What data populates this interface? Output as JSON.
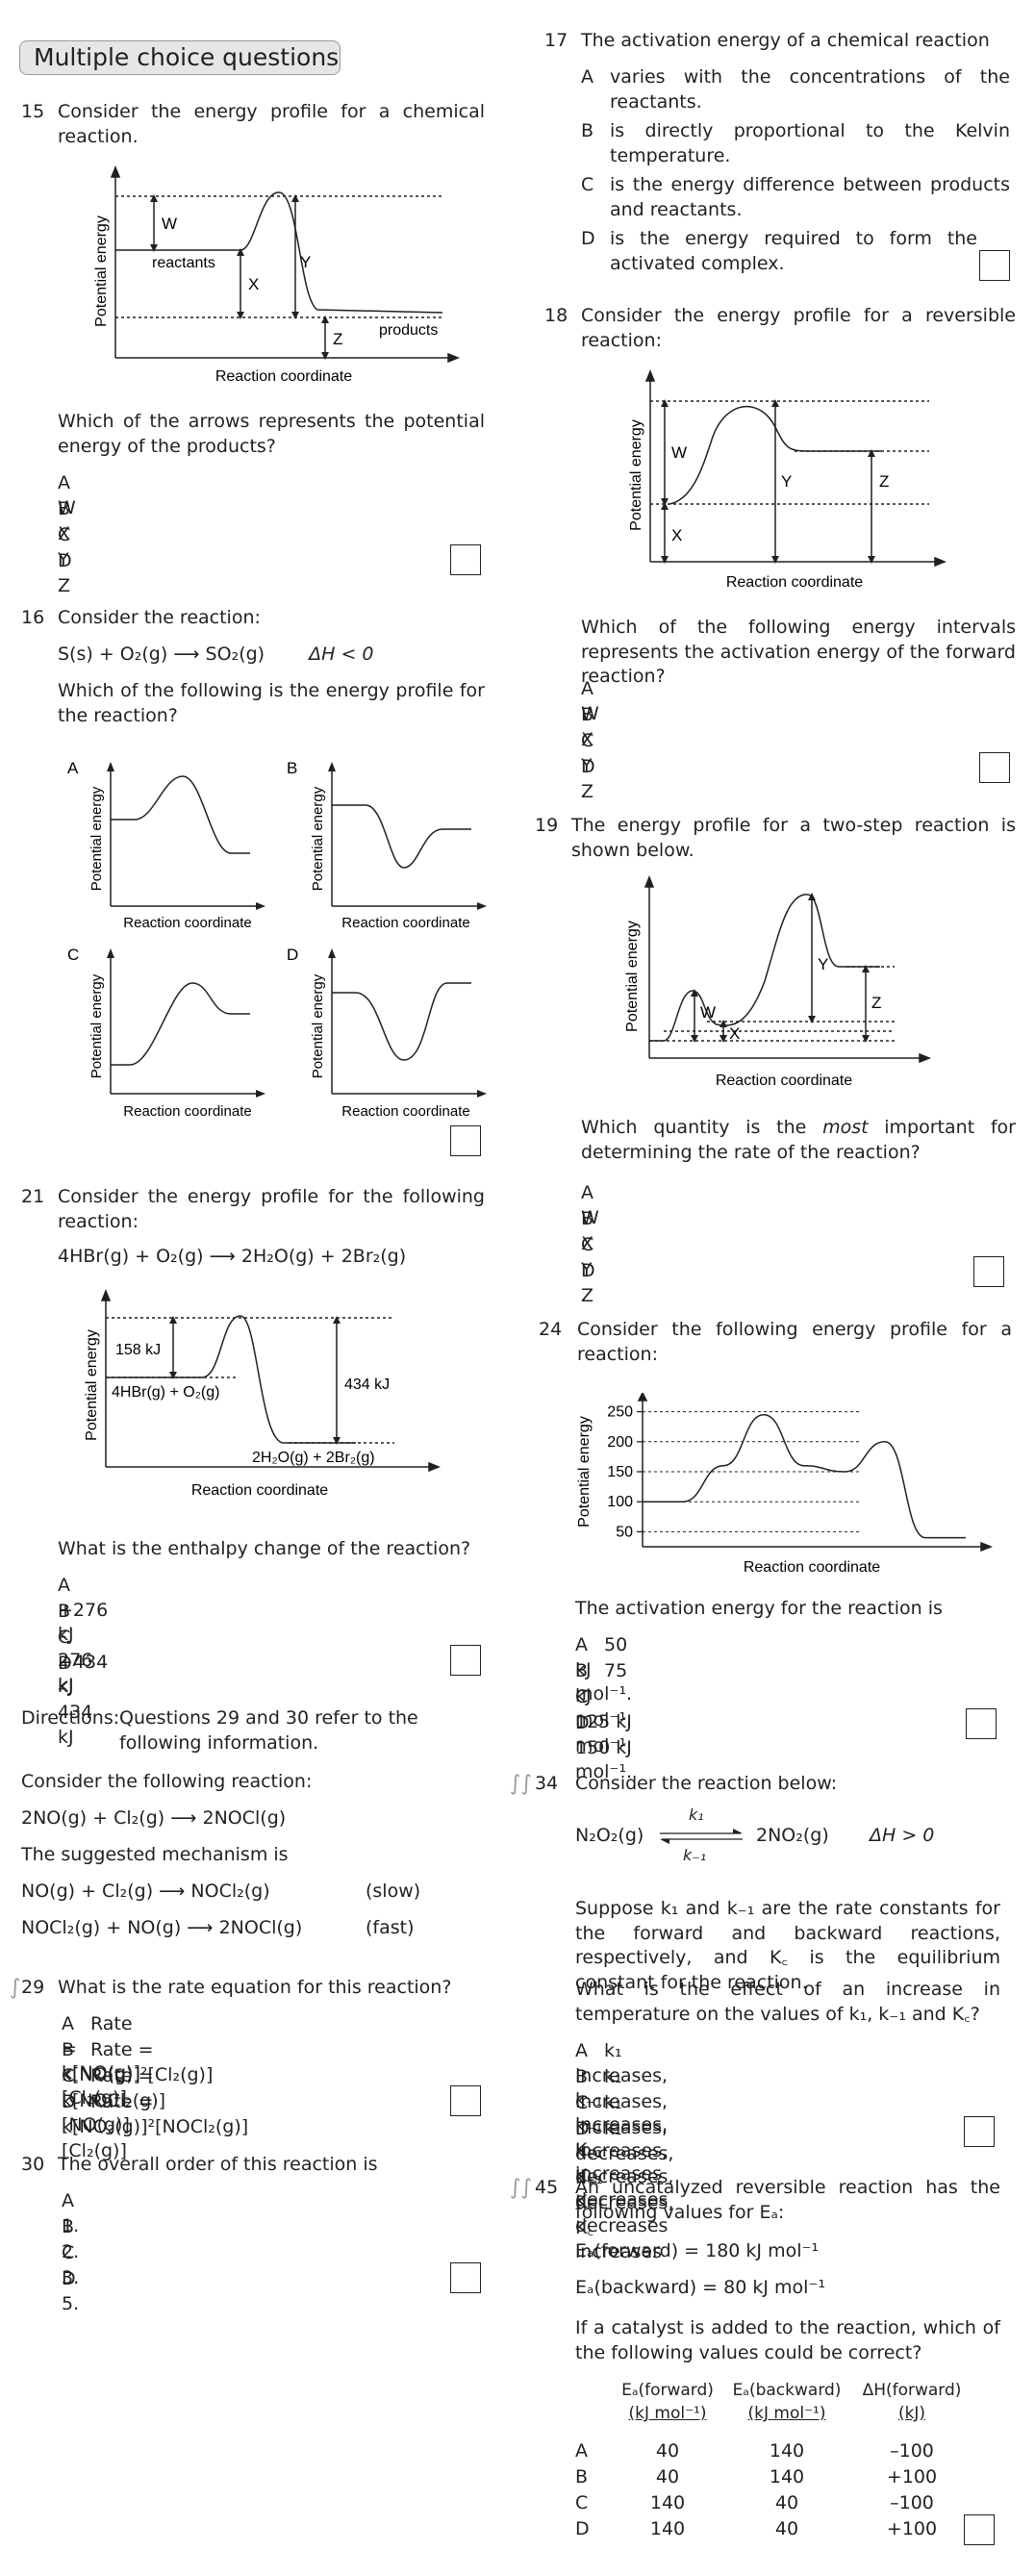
{
  "header": {
    "title": "Multiple choice questions"
  },
  "q15": {
    "num": "15",
    "text": "Consider the energy profile for a chemical reaction.",
    "fig": {
      "ylabel": "Potential energy",
      "xlabel": "Reaction coordinate",
      "reactants": "reactants",
      "products": "products",
      "W": "W",
      "X": "X",
      "Y": "Y",
      "Z": "Z"
    },
    "question": "Which of the arrows represents the potential energy of the products?",
    "options": [
      [
        "A",
        "W"
      ],
      [
        "B",
        "X"
      ],
      [
        "C",
        "Y"
      ],
      [
        "D",
        "Z"
      ]
    ]
  },
  "q16": {
    "num": "16",
    "text": "Consider the reaction:",
    "equation": "S(s) + O₂(g) ⟶ SO₂(g)",
    "dh": "ΔH < 0",
    "question": "Which of the following is the energy profile for the reaction?",
    "labels": [
      "A",
      "B",
      "C",
      "D"
    ],
    "ylabel": "Potential energy",
    "xlabel": "Reaction coordinate"
  },
  "q21": {
    "num": "21",
    "text": "Consider the energy profile for the following reaction:",
    "equation": "4HBr(g) + O₂(g) ⟶ 2H₂O(g) + 2Br₂(g)",
    "fig": {
      "ylabel": "Potential energy",
      "xlabel": "Reaction coordinate",
      "e1": "158 kJ",
      "e2": "434 kJ",
      "react": "4HBr(g) + O₂(g)",
      "prod": "2H₂O(g) + 2Br₂(g)"
    },
    "question": "What is the enthalpy change of the reaction?",
    "options": [
      [
        "A",
        "+276 kJ"
      ],
      [
        "B",
        "–276 kJ"
      ],
      [
        "C",
        "+434 kJ"
      ],
      [
        "D",
        "–434 kJ"
      ]
    ]
  },
  "directions": {
    "label": "Directions:",
    "text": "Questions 29 and 30 refer to the following information.",
    "consider": "Consider the following reaction:",
    "equation": "2NO(g) + Cl₂(g) ⟶ 2NOCl(g)",
    "mechanism": "The suggested mechanism is",
    "step1": "NO(g) + Cl₂(g) ⟶ NOCl₂(g)",
    "step1_rate": "(slow)",
    "step2": "NOCl₂(g) + NO(g) ⟶ 2NOCl(g)",
    "step2_rate": "(fast)"
  },
  "q29": {
    "num": "29",
    "text": "What is the rate equation for this reaction?",
    "options": [
      [
        "A",
        "Rate = k[NO(g)][Cl₂(g)]"
      ],
      [
        "B",
        "Rate = k[NO(g)]²[Cl₂(g)]"
      ],
      [
        "C",
        "Rate = k[NOCl₂(g)][NO(g)]"
      ],
      [
        "D",
        "Rate = k[NO₂(g)]²[NOCl₂(g)][Cl₂(g)]"
      ]
    ]
  },
  "q30": {
    "num": "30",
    "text": "The overall order of this reaction is",
    "options": [
      [
        "A",
        "1."
      ],
      [
        "B",
        "2."
      ],
      [
        "C",
        "3."
      ],
      [
        "D",
        "5."
      ]
    ]
  },
  "q17": {
    "num": "17",
    "text": "The activation energy of a chemical reaction",
    "options": [
      [
        "A",
        "varies with the concentrations of the reactants."
      ],
      [
        "B",
        "is directly proportional to the Kelvin temperature."
      ],
      [
        "C",
        "is the energy difference between products and reactants."
      ],
      [
        "D",
        "is the energy required to form the activated complex."
      ]
    ]
  },
  "q18": {
    "num": "18",
    "text": "Consider the energy profile for a reversible reaction:",
    "fig": {
      "ylabel": "Potential energy",
      "xlabel": "Reaction coordinate",
      "W": "W",
      "X": "X",
      "Y": "Y",
      "Z": "Z"
    },
    "question": "Which of the following energy intervals represents the activation energy of the forward reaction?",
    "options": [
      [
        "A",
        "W"
      ],
      [
        "B",
        "X"
      ],
      [
        "C",
        "Y"
      ],
      [
        "D",
        "Z"
      ]
    ]
  },
  "q19": {
    "num": "19",
    "text": "The energy profile for a two-step reaction is shown below.",
    "fig": {
      "ylabel": "Potential energy",
      "xlabel": "Reaction coordinate",
      "W": "W",
      "X": "X",
      "Y": "Y",
      "Z": "Z"
    },
    "question_pre": "Which quantity is the ",
    "question_em": "most",
    "question_post": " important for determining the rate of the reaction?",
    "options": [
      [
        "A",
        "W"
      ],
      [
        "B",
        "X"
      ],
      [
        "C",
        "Y"
      ],
      [
        "D",
        "Z"
      ]
    ]
  },
  "q24": {
    "num": "24",
    "text": "Consider the following energy profile for a reaction:",
    "question": "The activation energy for the reaction is",
    "options": [
      [
        "A",
        "50 kJ mol⁻¹."
      ],
      [
        "B",
        "75 kJ mol⁻¹."
      ],
      [
        "C",
        "125 kJ mol⁻¹."
      ],
      [
        "D",
        "150 kJ mol⁻¹."
      ]
    ]
  },
  "chart_data": {
    "type": "line",
    "ylabel": "Potential energy",
    "xlabel": "Reaction coordinate",
    "yticks": [
      50,
      100,
      150,
      200,
      250
    ],
    "ylim": [
      25,
      275
    ],
    "x": [
      0,
      1,
      2,
      3,
      4,
      5,
      6,
      7,
      8
    ],
    "values": [
      100,
      100,
      160,
      245,
      160,
      150,
      200,
      40,
      40
    ]
  },
  "q34": {
    "num": "34",
    "text": "Consider the reaction below:",
    "eq_left": "N₂O₂(g)",
    "eq_right": "2NO₂(g)",
    "k1": "k₁",
    "km1": "k₋₁",
    "dh": "ΔH > 0",
    "para1": "Suppose k₁ and k₋₁ are the rate constants for the forward and backward reactions, respectively, and K꜀ is the equilibrium constant for the reaction.",
    "question": "What is the effect of an increase in temperature on the values of k₁, k₋₁ and K꜀?",
    "options": [
      [
        "A",
        "k₁ increases, k₋₁ increases, K꜀ increases"
      ],
      [
        "B",
        "k₁ increases, k₋₁ increases, K꜀ decreases"
      ],
      [
        "C",
        "k₁ increases, k₋₁ decreases, K꜀ decreases"
      ],
      [
        "D",
        "k₁ decreases, k₋₁ decreases, K꜀ increases"
      ]
    ]
  },
  "q45": {
    "num": "45",
    "text": "An uncatalyzed reversible reaction has the following values for Eₐ:",
    "ef": "Eₐ(forward) = 180 kJ mol⁻¹",
    "eb": "Eₐ(backward) = 80 kJ mol⁻¹",
    "question": "If a catalyst is added to the reaction, which of the following values could be correct?",
    "headers": [
      "Eₐ(forward)",
      "Eₐ(backward)",
      "ΔH(forward)"
    ],
    "units": [
      "(kJ mol⁻¹)",
      "(kJ mol⁻¹)",
      "(kJ)"
    ],
    "rows": [
      [
        "A",
        "40",
        "140",
        "–100"
      ],
      [
        "B",
        "40",
        "140",
        "+100"
      ],
      [
        "C",
        "140",
        "40",
        "–100"
      ],
      [
        "D",
        "140",
        "40",
        "+100"
      ]
    ]
  }
}
